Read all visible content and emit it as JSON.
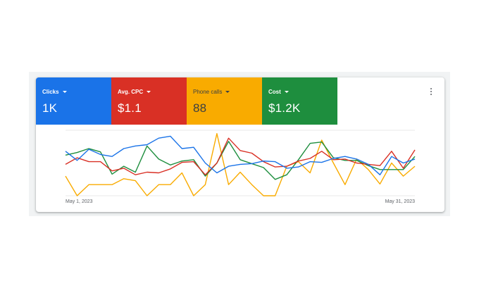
{
  "colors": {
    "clicks": "#1a73e8",
    "avg_cpc": "#d93025",
    "phone_calls": "#f9ab00",
    "cost": "#1e8e3e",
    "gridline": "#e0e0e0"
  },
  "metrics": [
    {
      "label": "Clicks",
      "value": "1K",
      "icon": "chevron-down-icon"
    },
    {
      "label": "Avg. CPC",
      "value": "$1.1",
      "icon": "chevron-down-icon"
    },
    {
      "label": "Phone calls",
      "value": "88",
      "icon": "chevron-down-icon"
    },
    {
      "label": "Cost",
      "value": "$1.2K",
      "icon": "chevron-down-icon"
    }
  ],
  "menu": {
    "icon": "more-vert-icon"
  },
  "chart_data": {
    "type": "line",
    "x_start_label": "May 1, 2023",
    "x_end_label": "May 31, 2023",
    "grid": true,
    "ylim": [
      0,
      100
    ],
    "series": [
      {
        "key": "clicks",
        "values": [
          68,
          54,
          71,
          63,
          60,
          72,
          76,
          78,
          88,
          91,
          72,
          74,
          50,
          35,
          45,
          48,
          49,
          53,
          52,
          42,
          44,
          52,
          51,
          57,
          60,
          56,
          48,
          32,
          60,
          50,
          56
        ]
      },
      {
        "key": "avg_cpc",
        "values": [
          48,
          58,
          52,
          52,
          38,
          42,
          32,
          36,
          35,
          41,
          51,
          52,
          32,
          50,
          88,
          69,
          65,
          52,
          44,
          45,
          53,
          57,
          68,
          55,
          56,
          50,
          48,
          46,
          68,
          42,
          70
        ]
      },
      {
        "key": "phone_calls",
        "values": [
          30,
          0,
          17,
          17,
          17,
          26,
          23,
          0,
          17,
          17,
          35,
          0,
          17,
          95,
          17,
          36,
          17,
          0,
          0,
          45,
          52,
          35,
          85,
          50,
          17,
          56,
          40,
          18,
          50,
          30,
          45
        ]
      },
      {
        "key": "cost",
        "values": [
          62,
          66,
          72,
          67,
          33,
          45,
          36,
          76,
          56,
          47,
          53,
          55,
          30,
          50,
          83,
          55,
          49,
          43,
          25,
          32,
          55,
          80,
          82,
          58,
          54,
          54,
          46,
          40,
          40,
          40,
          60
        ]
      }
    ]
  }
}
